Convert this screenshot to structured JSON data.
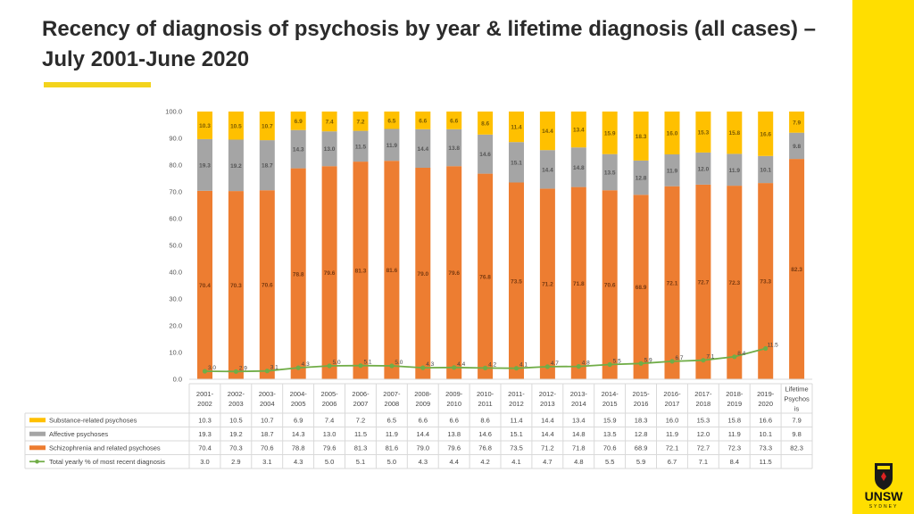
{
  "slide": {
    "title": "Recency of diagnosis of psychosis by year & lifetime diagnosis (all cases) – July 2001-June 2020",
    "logo_text": "UNSW",
    "logo_sub": "SYDNEY"
  },
  "colors": {
    "substance": "#ffc000",
    "affective": "#a5a5a5",
    "schizophrenia": "#ed7d31",
    "line": "#70ad47",
    "accent": "#ffde00"
  },
  "chart_data": {
    "type": "bar",
    "stacked": true,
    "ylim": [
      0,
      100
    ],
    "yticks": [
      "0.0",
      "10.0",
      "20.0",
      "30.0",
      "40.0",
      "50.0",
      "60.0",
      "70.0",
      "80.0",
      "90.0",
      "100.0"
    ],
    "grid": false,
    "legend": "table-left",
    "categories": [
      [
        "2001-",
        "2002"
      ],
      [
        "2002-",
        "2003"
      ],
      [
        "2003-",
        "2004"
      ],
      [
        "2004-",
        "2005"
      ],
      [
        "2005-",
        "2006"
      ],
      [
        "2006-",
        "2007"
      ],
      [
        "2007-",
        "2008"
      ],
      [
        "2008-",
        "2009"
      ],
      [
        "2009-",
        "2010"
      ],
      [
        "2010-",
        "2011"
      ],
      [
        "2011-",
        "2012"
      ],
      [
        "2012-",
        "2013"
      ],
      [
        "2013-",
        "2014"
      ],
      [
        "2014-",
        "2015"
      ],
      [
        "2015-",
        "2016"
      ],
      [
        "2016-",
        "2017"
      ],
      [
        "2017-",
        "2018"
      ],
      [
        "2018-",
        "2019"
      ],
      [
        "2019-",
        "2020"
      ],
      [
        "Lifetime",
        "Psychos",
        "is"
      ]
    ],
    "series": [
      {
        "name": "Substance-related psychoses",
        "key": "substance",
        "values": [
          "10.3",
          "10.5",
          "10.7",
          "6.9",
          "7.4",
          "7.2",
          "6.5",
          "6.6",
          "6.6",
          "8.6",
          "11.4",
          "14.4",
          "13.4",
          "15.9",
          "18.3",
          "16.0",
          "15.3",
          "15.8",
          "16.6",
          "7.9"
        ]
      },
      {
        "name": "Affective psychoses",
        "key": "affective",
        "values": [
          "19.3",
          "19.2",
          "18.7",
          "14.3",
          "13.0",
          "11.5",
          "11.9",
          "14.4",
          "13.8",
          "14.6",
          "15.1",
          "14.4",
          "14.8",
          "13.5",
          "12.8",
          "11.9",
          "12.0",
          "11.9",
          "10.1",
          "9.8"
        ]
      },
      {
        "name": "Schizophrenia and related psychoses",
        "key": "schizophrenia",
        "values": [
          "70.4",
          "70.3",
          "70.6",
          "78.8",
          "79.6",
          "81.3",
          "81.6",
          "79.0",
          "79.6",
          "76.8",
          "73.5",
          "71.2",
          "71.8",
          "70.6",
          "68.9",
          "72.1",
          "72.7",
          "72.3",
          "73.3",
          "82.3"
        ]
      },
      {
        "name": "Total yearly % of most recent diagnosis",
        "key": "line",
        "type": "line",
        "values": [
          "3.0",
          "2.9",
          "3.1",
          "4.3",
          "5.0",
          "5.1",
          "5.0",
          "4.3",
          "4.4",
          "4.2",
          "4.1",
          "4.7",
          "4.8",
          "5.5",
          "5.9",
          "6.7",
          "7.1",
          "8.4",
          "11.5",
          ""
        ]
      }
    ]
  }
}
